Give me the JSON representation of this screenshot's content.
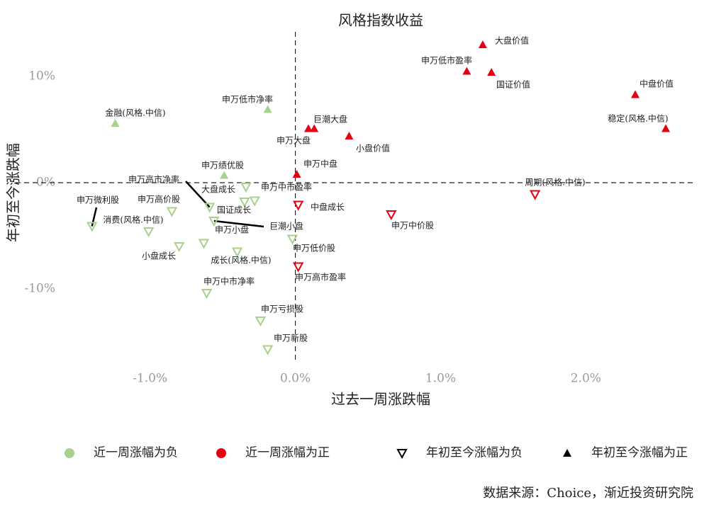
{
  "chart_data": {
    "type": "scatter",
    "title": "风格指数收益",
    "x_label": "过去一周涨跌幅",
    "y_label": "年初至今涨跌幅",
    "xlim": [
      -1.55,
      2.75
    ],
    "ylim": [
      -16.8,
      15.2
    ],
    "xticks": [
      {
        "value": -1,
        "label": "-1.0%"
      },
      {
        "value": 0,
        "label": "0.0%"
      },
      {
        "value": 1,
        "label": "1.0%"
      },
      {
        "value": 2,
        "label": "2.0%"
      }
    ],
    "yticks": [
      {
        "value": -10,
        "label": "-10%"
      },
      {
        "value": 0,
        "label": "0%"
      },
      {
        "value": 10,
        "label": "10%"
      }
    ],
    "grid": false,
    "points": [
      {
        "name": "金融(风格.中信)",
        "x": -1.24,
        "y": 5.6
      },
      {
        "name": "申万低市净率",
        "x": -0.19,
        "y": 6.9
      },
      {
        "name": "申万绩优股",
        "x": -0.49,
        "y": 0.7
      },
      {
        "name": "申万高市净率",
        "x": -0.59,
        "y": -2.3
      },
      {
        "name": "大盘成长",
        "x": -0.34,
        "y": -0.4
      },
      {
        "name": "申万中市盈率",
        "x": -0.28,
        "y": -1.7
      },
      {
        "name": "国证成长",
        "x": -0.35,
        "y": -1.8
      },
      {
        "name": "申万高价股",
        "x": -0.85,
        "y": -2.7
      },
      {
        "name": "申万微利股",
        "x": -1.4,
        "y": -4.1
      },
      {
        "name": "消费(风格.中信)",
        "x": -1.01,
        "y": -4.6
      },
      {
        "name": "巨潮小盘",
        "x": -0.56,
        "y": -3.6
      },
      {
        "name": "申万小盘",
        "x": -0.63,
        "y": -5.7
      },
      {
        "name": "小盘成长",
        "x": -0.8,
        "y": -6.0
      },
      {
        "name": "成长(风格.中信)",
        "x": -0.4,
        "y": -6.5
      },
      {
        "name": "申万低价股",
        "x": -0.02,
        "y": -5.3
      },
      {
        "name": "申万中市净率",
        "x": -0.61,
        "y": -10.4
      },
      {
        "name": "申万亏损股",
        "x": -0.24,
        "y": -13.0
      },
      {
        "name": "申万新股",
        "x": -0.19,
        "y": -15.7
      },
      {
        "name": "大盘价值",
        "x": 1.29,
        "y": 13.0
      },
      {
        "name": "申万低市盈率",
        "x": 1.18,
        "y": 10.5
      },
      {
        "name": "国证价值",
        "x": 1.35,
        "y": 10.4
      },
      {
        "name": "中盘价值",
        "x": 2.34,
        "y": 8.3
      },
      {
        "name": "稳定(风格.中信)",
        "x": 2.55,
        "y": 5.1
      },
      {
        "name": "巨潮大盘",
        "x": 0.13,
        "y": 5.1
      },
      {
        "name": "申万大盘",
        "x": 0.09,
        "y": 5.1
      },
      {
        "name": "小盘价值",
        "x": 0.37,
        "y": 4.4
      },
      {
        "name": "申万中盘",
        "x": 0.01,
        "y": 0.8
      },
      {
        "name": "周期(风格.中信)",
        "x": 1.65,
        "y": -1.1
      },
      {
        "name": "申万中价股",
        "x": 0.66,
        "y": -3.0
      },
      {
        "name": "中盘成长",
        "x": 0.02,
        "y": -2.1
      },
      {
        "name": "申万高市盈率",
        "x": 0.02,
        "y": -7.9
      }
    ],
    "legend": [
      {
        "label": "近一周涨幅为负",
        "color": "#a9d18e"
      },
      {
        "label": "近一周涨幅为正",
        "color": "#e60012"
      },
      {
        "label": "年初至今涨幅为负"
      },
      {
        "label": "年初至今涨幅为正"
      }
    ],
    "source": "数据来源：Choice，渐近投资研究院"
  }
}
